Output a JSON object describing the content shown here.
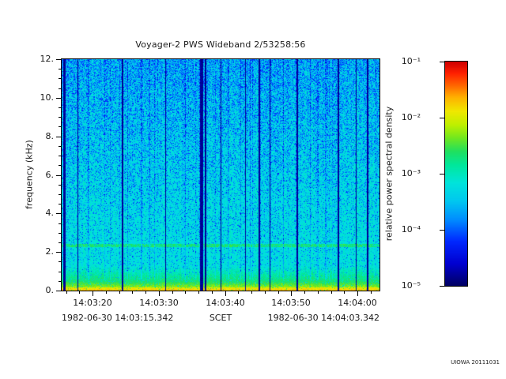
{
  "title": "Voyager-2 PWS Wideband 2/53258:56",
  "footer": "UIOWA 20111031",
  "chart_data": {
    "type": "heatmap",
    "title": "Voyager-2 PWS Wideband 2/53258:56",
    "xlabel": "SCET",
    "ylabel": "frequency (kHz)",
    "x_start": "1982-06-30 14:03:15.342",
    "x_end": "1982-06-30 14:04:03.342",
    "x_start_seconds": 15.342,
    "x_end_seconds": 63.342,
    "x_minor_step_s": 2,
    "x_major_step_s": 10,
    "x_ticks": [
      {
        "label": "14:03:20",
        "s": 20
      },
      {
        "label": "14:03:30",
        "s": 30
      },
      {
        "label": "14:03:40",
        "s": 40
      },
      {
        "label": "14:03:50",
        "s": 50
      },
      {
        "label": "14:04:00",
        "s": 60
      }
    ],
    "y_min": 0,
    "y_max": 12,
    "y_major_step": 2,
    "y_minor_step": 0.5,
    "y_tick_labels": [
      "0.",
      "2.",
      "4.",
      "6.",
      "8.",
      "10.",
      "12."
    ],
    "colorbar": {
      "label": "relative power spectral density",
      "tick_labels": [
        "10⁻¹",
        "10⁻²",
        "10⁻³",
        "10⁻⁴",
        "10⁻⁵"
      ],
      "max_exp": -1,
      "min_exp": -5,
      "scale": "log10"
    },
    "colormap_stops": [
      [
        0.0,
        "#000060"
      ],
      [
        0.1,
        "#0000d0"
      ],
      [
        0.2,
        "#0028ff"
      ],
      [
        0.3,
        "#0090ff"
      ],
      [
        0.38,
        "#00c8f0"
      ],
      [
        0.46,
        "#00e4dc"
      ],
      [
        0.54,
        "#00e89c"
      ],
      [
        0.6,
        "#20e060"
      ],
      [
        0.66,
        "#70e820"
      ],
      [
        0.72,
        "#c0f000"
      ],
      [
        0.78,
        "#f0e800"
      ],
      [
        0.84,
        "#ffb400"
      ],
      [
        0.9,
        "#ff6000"
      ],
      [
        0.95,
        "#ff2000"
      ],
      [
        1.0,
        "#d00000"
      ]
    ],
    "features": {
      "description": "Broadband cyan noise background with denser dark-blue speckle toward high frequencies, intense yellow-orange band below ~0.4 kHz fading through green to cyan by ~1.3 kHz, narrow green spectral line near 2.35 kHz, and full-height dark data-gap columns",
      "background_level": 0.43,
      "low_freq_band_khz": 0.5,
      "spectral_line_khz": 2.35,
      "gap_lines": [
        [
          0.008,
          3
        ],
        [
          0.05,
          1
        ],
        [
          0.19,
          2
        ],
        [
          0.325,
          1
        ],
        [
          0.438,
          4
        ],
        [
          0.452,
          2
        ],
        [
          0.5,
          1
        ],
        [
          0.577,
          1
        ],
        [
          0.62,
          2
        ],
        [
          0.655,
          1
        ],
        [
          0.74,
          2
        ],
        [
          0.87,
          2
        ],
        [
          0.925,
          1
        ],
        [
          0.962,
          2
        ]
      ],
      "seed": 19820630
    }
  }
}
